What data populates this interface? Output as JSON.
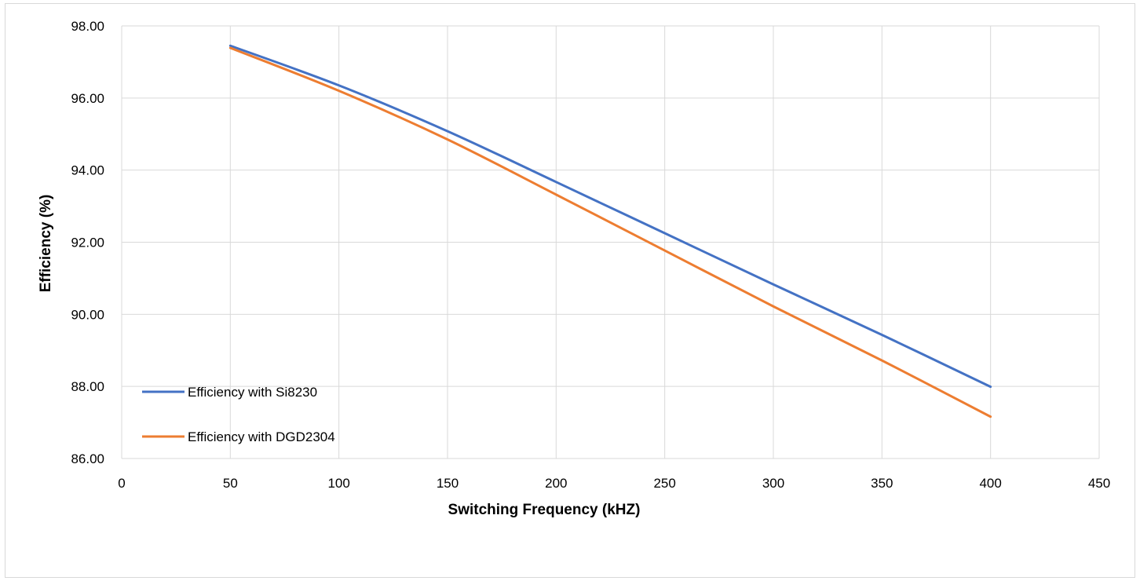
{
  "chart_data": {
    "type": "line",
    "xlabel": "Switching Frequency (kHZ)",
    "ylabel": "Efficiency (%)",
    "xlim": [
      0,
      450
    ],
    "ylim": [
      86,
      98
    ],
    "x_ticks": [
      "0",
      "50",
      "100",
      "150",
      "200",
      "250",
      "300",
      "350",
      "400",
      "450"
    ],
    "y_ticks": [
      "86.00",
      "88.00",
      "90.00",
      "92.00",
      "94.00",
      "96.00",
      "98.00"
    ],
    "grid": true,
    "legend_position": "bottom-left",
    "x": [
      50,
      100,
      150,
      200,
      250,
      300,
      350,
      400
    ],
    "series": [
      {
        "name": "Efficiency with Si8230",
        "color": "#4472c4",
        "values": [
          97.45,
          96.35,
          95.08,
          93.67,
          92.25,
          90.83,
          89.43,
          87.99
        ]
      },
      {
        "name": "Efficiency with DGD2304",
        "color": "#ed7d31",
        "values": [
          97.39,
          96.2,
          94.85,
          93.32,
          91.77,
          90.22,
          88.72,
          87.16
        ]
      }
    ]
  }
}
